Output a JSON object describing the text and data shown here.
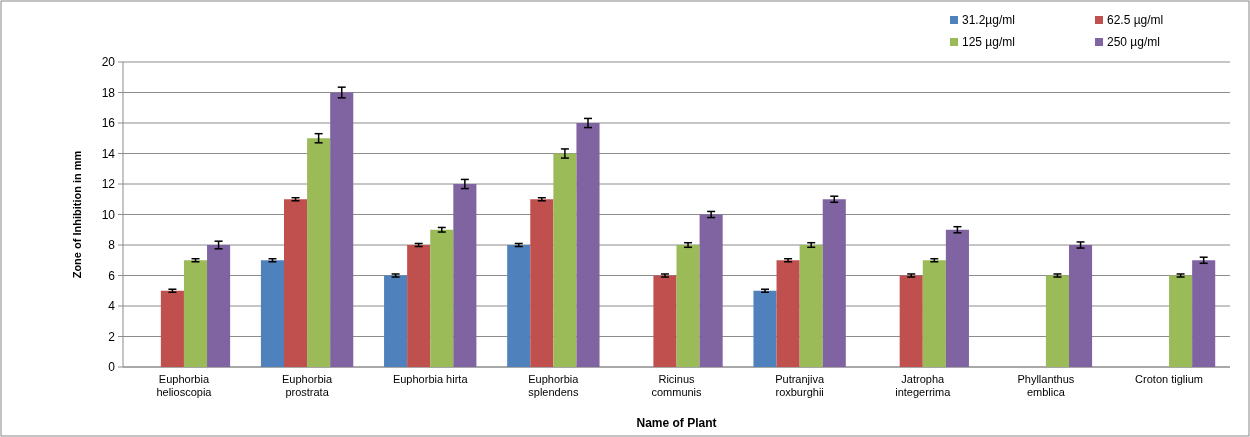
{
  "chart_data": {
    "type": "bar",
    "xlabel": "Name of Plant",
    "ylabel": "Zone of Inhibition in mm",
    "categories": [
      "Euphorbia helioscopia",
      "Euphorbia prostrata",
      "Euphorbia hirta",
      "Euphorbia splendens",
      "Ricinus communis",
      "Putranjiva roxburghii",
      "Jatropha integerrima",
      "Phyllanthus emblica",
      "Croton tiglium"
    ],
    "series": [
      {
        "name": "31.2µg/ml",
        "color": "#4f81bd",
        "values": [
          null,
          7,
          6,
          8,
          null,
          5,
          null,
          null,
          null
        ],
        "errors": [
          null,
          0.1,
          0.1,
          0.1,
          null,
          0.1,
          null,
          null,
          null
        ]
      },
      {
        "name": "62.5 µg/ml",
        "color": "#c0504d",
        "values": [
          5,
          11,
          8,
          11,
          6,
          7,
          6,
          null,
          null
        ],
        "errors": [
          0.1,
          0.1,
          0.1,
          0.1,
          0.1,
          0.1,
          0.1,
          null,
          null
        ]
      },
      {
        "name": "125 µg/ml",
        "color": "#9bbb59",
        "values": [
          7,
          15,
          9,
          14,
          8,
          8,
          7,
          6,
          6
        ],
        "errors": [
          0.1,
          0.3,
          0.15,
          0.3,
          0.15,
          0.15,
          0.1,
          0.1,
          0.1
        ]
      },
      {
        "name": "250 µg/ml",
        "color": "#8064a2",
        "values": [
          8,
          18,
          12,
          16,
          10,
          11,
          9,
          8,
          7
        ],
        "errors": [
          0.25,
          0.35,
          0.3,
          0.3,
          0.2,
          0.2,
          0.2,
          0.2,
          0.2
        ]
      }
    ],
    "ylim": [
      0,
      20
    ],
    "yticks": [
      0,
      2,
      4,
      6,
      8,
      10,
      12,
      14,
      16,
      18,
      20
    ],
    "grid": "y",
    "legend": "top right"
  }
}
